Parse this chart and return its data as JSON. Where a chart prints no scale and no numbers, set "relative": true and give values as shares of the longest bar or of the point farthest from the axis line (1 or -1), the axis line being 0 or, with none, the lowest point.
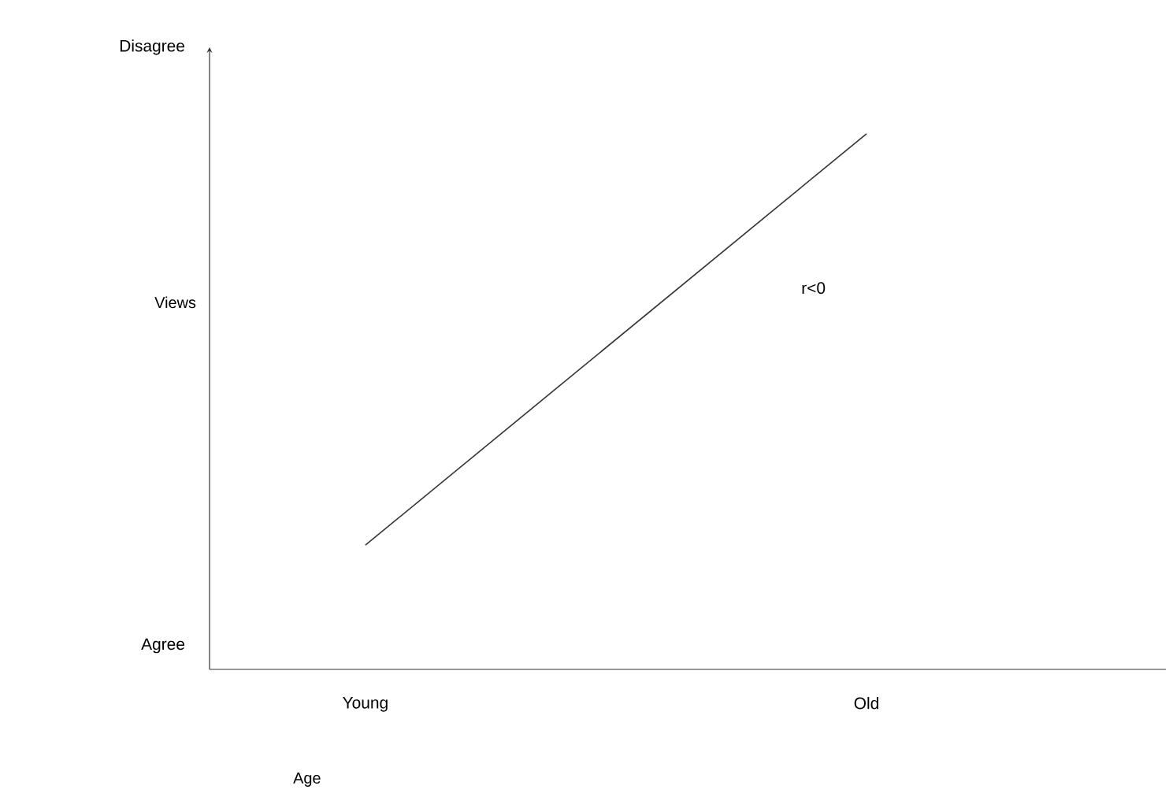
{
  "chart_data": {
    "type": "line",
    "relative": true,
    "xlabel": "Age",
    "ylabel": "Views",
    "categories": [
      "Young",
      "Old"
    ],
    "series": [
      {
        "color": "#333333",
        "values": [
          0.232,
          1
        ]
      }
    ],
    "annotations": [
      "Disagree",
      "Agree",
      "r<0"
    ]
  }
}
